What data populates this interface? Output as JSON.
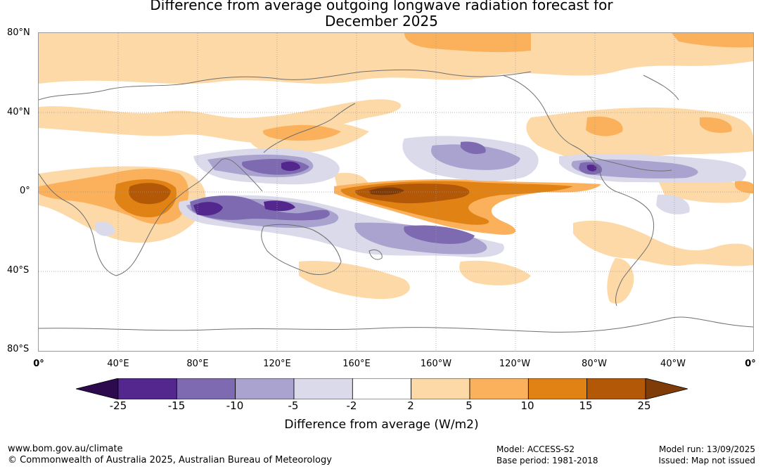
{
  "title": {
    "line1": "Difference from average outgoing longwave radiation forecast for",
    "line2": "December 2025"
  },
  "map": {
    "lat_labels": [
      "80°N",
      "40°N",
      "0°",
      "40°S",
      "80°S"
    ],
    "lon_labels": [
      "0°",
      "40°E",
      "80°E",
      "120°E",
      "160°E",
      "160°W",
      "120°W",
      "80°W",
      "40°W",
      "0°"
    ],
    "colors": {
      "land_outline": "#707070",
      "grid": "#9a9a9a"
    }
  },
  "colorbar": {
    "ticks": [
      "-25",
      "-15",
      "-10",
      "-5",
      "-2",
      "2",
      "5",
      "10",
      "15",
      "25"
    ],
    "colors": [
      "#2d0a4e",
      "#54278f",
      "#7e6ab0",
      "#aaa2cf",
      "#dadaeb",
      "#ffffff",
      "#fdd9a8",
      "#fbb15c",
      "#e08214",
      "#b35806",
      "#7f3b08"
    ],
    "label": "Difference from average (W/m2)"
  },
  "footer": {
    "website": "www.bom.gov.au/climate",
    "copyright": "© Commonwealth of Australia 2025, Australian Bureau of Meteorology",
    "model": "Model: ACCESS-S2",
    "base_period": "Base period: 1981-2018",
    "model_run": "Model run: 13/09/2025",
    "issued": "Issued: Map not issued"
  }
}
